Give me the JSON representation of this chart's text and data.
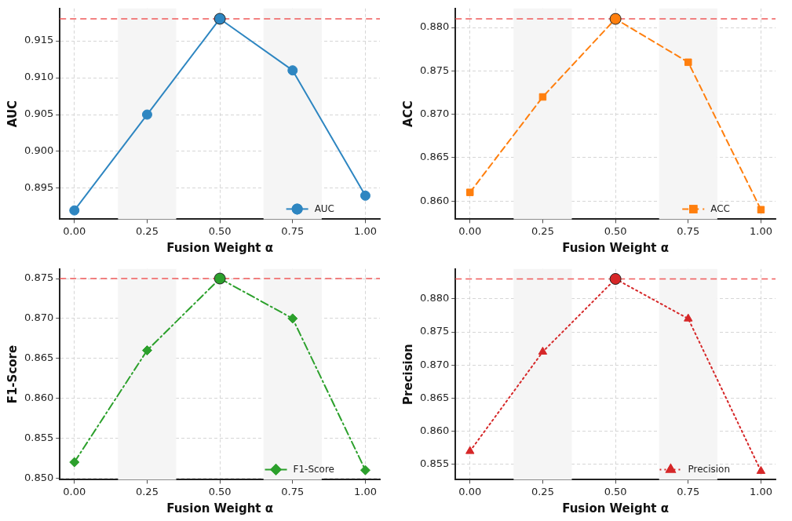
{
  "chart_data": [
    {
      "type": "line",
      "xlabel": "Fusion Weight α",
      "ylabel": "AUC",
      "x": [
        0,
        0.25,
        0.5,
        0.75,
        1
      ],
      "xlim": [
        -0.05,
        1.05
      ],
      "xticks": [
        {
          "value": 0,
          "label": "0.00"
        },
        {
          "value": 0.25,
          "label": "0.25"
        },
        {
          "value": 0.5,
          "label": "0.50"
        },
        {
          "value": 0.75,
          "label": "0.75"
        },
        {
          "value": 1,
          "label": "1.00"
        }
      ],
      "ylim": [
        0.8908,
        0.9194
      ],
      "yticks": [
        {
          "value": 0.895,
          "label": "0.895"
        },
        {
          "value": 0.9,
          "label": "0.900"
        },
        {
          "value": 0.905,
          "label": "0.905"
        },
        {
          "value": 0.91,
          "label": "0.910"
        },
        {
          "value": 0.915,
          "label": "0.915"
        }
      ],
      "grid": true,
      "legend": "bottom right",
      "series": [
        {
          "name": "AUC",
          "color": "#2e86c1",
          "values": [
            0.892,
            0.905,
            0.918,
            0.911,
            0.894
          ],
          "marker": "circle",
          "line_style": "solid"
        },
        {
          "type": "scatter",
          "color": "#2e86c1",
          "values": [
            null,
            null,
            0.918,
            null,
            null
          ],
          "marker": "circle"
        }
      ],
      "ref_lines": [
        {
          "axis": "y",
          "value": 0.918,
          "color": "#f05a5a",
          "line_style": "dashed"
        }
      ],
      "bands": [
        {
          "axis": "x",
          "from": 0.15,
          "to": 0.35,
          "color": "#f5f5f5"
        },
        {
          "axis": "x",
          "from": 0.65,
          "to": 0.85,
          "color": "#f5f5f5"
        }
      ]
    },
    {
      "type": "line",
      "xlabel": "Fusion Weight α",
      "ylabel": "ACC",
      "x": [
        0,
        0.25,
        0.5,
        0.75,
        1
      ],
      "xlim": [
        -0.05,
        1.05
      ],
      "xticks": [
        {
          "value": 0,
          "label": "0.00"
        },
        {
          "value": 0.25,
          "label": "0.25"
        },
        {
          "value": 0.5,
          "label": "0.50"
        },
        {
          "value": 0.75,
          "label": "0.75"
        },
        {
          "value": 1,
          "label": "1.00"
        }
      ],
      "ylim": [
        0.8579,
        0.8822
      ],
      "yticks": [
        {
          "value": 0.86,
          "label": "0.860"
        },
        0.865,
        {
          "value": 0.87,
          "label": "0.870"
        },
        0.875,
        {
          "value": 0.88,
          "label": "0.880"
        }
      ],
      "grid": true,
      "legend": "bottom right",
      "series": [
        {
          "name": "ACC",
          "color": "#ff7f0e",
          "values": [
            0.861,
            0.872,
            0.881,
            0.876,
            0.859
          ],
          "marker": "square",
          "line_style": "dashed"
        },
        {
          "type": "scatter",
          "color": "#ff7f0e",
          "values": [
            null,
            null,
            0.881,
            null,
            null
          ],
          "marker": "circle"
        }
      ],
      "ref_lines": [
        {
          "axis": "y",
          "value": 0.881,
          "color": "#f05a5a",
          "line_style": "dashed"
        }
      ],
      "bands": [
        {
          "axis": "x",
          "from": 0.15,
          "to": 0.35,
          "color": "#f5f5f5"
        },
        {
          "axis": "x",
          "from": 0.65,
          "to": 0.85,
          "color": "#f5f5f5"
        }
      ]
    },
    {
      "type": "line",
      "xlabel": "Fusion Weight α",
      "ylabel": "F1-Score",
      "x": [
        0,
        0.25,
        0.5,
        0.75,
        1
      ],
      "xlim": [
        -0.05,
        1.05
      ],
      "xticks": [
        {
          "value": 0,
          "label": "0.00"
        },
        {
          "value": 0.25,
          "label": "0.25"
        },
        {
          "value": 0.5,
          "label": "0.50"
        },
        {
          "value": 0.75,
          "label": "0.75"
        },
        {
          "value": 1,
          "label": "1.00"
        }
      ],
      "ylim": [
        0.8498,
        0.8762
      ],
      "yticks": [
        {
          "value": 0.85,
          "label": "0.850"
        },
        0.855,
        {
          "value": 0.86,
          "label": "0.860"
        },
        0.865,
        {
          "value": 0.87,
          "label": "0.870"
        },
        0.875
      ],
      "grid": true,
      "legend": "bottom right",
      "series": [
        {
          "name": "F1-Score",
          "color": "#2ca02c",
          "values": [
            0.852,
            0.866,
            0.875,
            0.87,
            0.851
          ],
          "marker": "diamond",
          "line_style": "dashdot"
        },
        {
          "type": "scatter",
          "color": "#2ca02c",
          "values": [
            null,
            null,
            0.875,
            null,
            null
          ],
          "marker": "circle"
        }
      ],
      "ref_lines": [
        {
          "axis": "y",
          "value": 0.875,
          "color": "#f05a5a",
          "line_style": "dashed"
        }
      ],
      "bands": [
        {
          "axis": "x",
          "from": 0.15,
          "to": 0.35,
          "color": "#f5f5f5"
        },
        {
          "axis": "x",
          "from": 0.65,
          "to": 0.85,
          "color": "#f5f5f5"
        }
      ]
    },
    {
      "type": "line",
      "xlabel": "Fusion Weight α",
      "ylabel": "Precision",
      "x": [
        0,
        0.25,
        0.5,
        0.75,
        1
      ],
      "xlim": [
        -0.05,
        1.05
      ],
      "xticks": [
        {
          "value": 0,
          "label": "0.00"
        },
        {
          "value": 0.25,
          "label": "0.25"
        },
        {
          "value": 0.5,
          "label": "0.50"
        },
        {
          "value": 0.75,
          "label": "0.75"
        },
        {
          "value": 1,
          "label": "1.00"
        }
      ],
      "ylim": [
        0.8527,
        0.8845
      ],
      "yticks": [
        0.855,
        {
          "value": 0.86,
          "label": "0.860"
        },
        0.865,
        {
          "value": 0.87,
          "label": "0.870"
        },
        0.875,
        {
          "value": 0.88,
          "label": "0.880"
        }
      ],
      "grid": true,
      "legend": "bottom right",
      "series": [
        {
          "name": "Precision",
          "color": "#d62728",
          "values": [
            0.857,
            0.872,
            0.883,
            0.877,
            0.854
          ],
          "marker": "triangle",
          "line_style": "dotted"
        },
        {
          "type": "scatter",
          "color": "#d62728",
          "values": [
            null,
            null,
            0.883,
            null,
            null
          ],
          "marker": "circle"
        }
      ],
      "ref_lines": [
        {
          "axis": "y",
          "value": 0.883,
          "color": "#f05a5a",
          "line_style": "dashed"
        }
      ],
      "bands": [
        {
          "axis": "x",
          "from": 0.15,
          "to": 0.35,
          "color": "#f5f5f5"
        },
        {
          "axis": "x",
          "from": 0.65,
          "to": 0.85,
          "color": "#f5f5f5"
        }
      ]
    }
  ]
}
